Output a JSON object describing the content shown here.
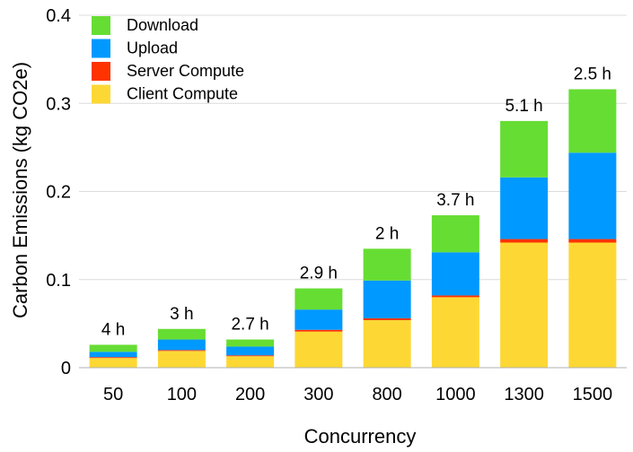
{
  "chart_data": {
    "type": "bar",
    "stacked": true,
    "title": "",
    "xlabel": "Concurrency",
    "ylabel": "Carbon Emissions (kg CO2e)",
    "ylim": [
      0,
      0.4
    ],
    "yticks": [
      0,
      0.1,
      0.2,
      0.3,
      0.4
    ],
    "ytick_labels": [
      "0",
      "0.1",
      "0.2",
      "0.3",
      "0.4"
    ],
    "grid": true,
    "legend_position": "top-left",
    "categories": [
      "50",
      "100",
      "200",
      "300",
      "800",
      "1000",
      "1300",
      "1500"
    ],
    "annotations": [
      "4 h",
      "3 h",
      "2.7 h",
      "2.9 h",
      "2 h",
      "3.7 h",
      "5.1 h",
      "2.5 h"
    ],
    "series": [
      {
        "name": "Client Compute",
        "color": "#FDD835",
        "values": [
          0.011,
          0.019,
          0.013,
          0.041,
          0.054,
          0.08,
          0.142,
          0.142
        ]
      },
      {
        "name": "Server Compute",
        "color": "#FF3300",
        "values": [
          0.001,
          0.001,
          0.001,
          0.002,
          0.002,
          0.002,
          0.004,
          0.004
        ]
      },
      {
        "name": "Upload",
        "color": "#0099FF",
        "values": [
          0.006,
          0.012,
          0.01,
          0.023,
          0.043,
          0.049,
          0.07,
          0.098
        ]
      },
      {
        "name": "Download",
        "color": "#66DD33",
        "values": [
          0.008,
          0.012,
          0.008,
          0.024,
          0.036,
          0.042,
          0.064,
          0.072
        ]
      }
    ],
    "legend_order": [
      "Download",
      "Upload",
      "Server Compute",
      "Client Compute"
    ]
  }
}
